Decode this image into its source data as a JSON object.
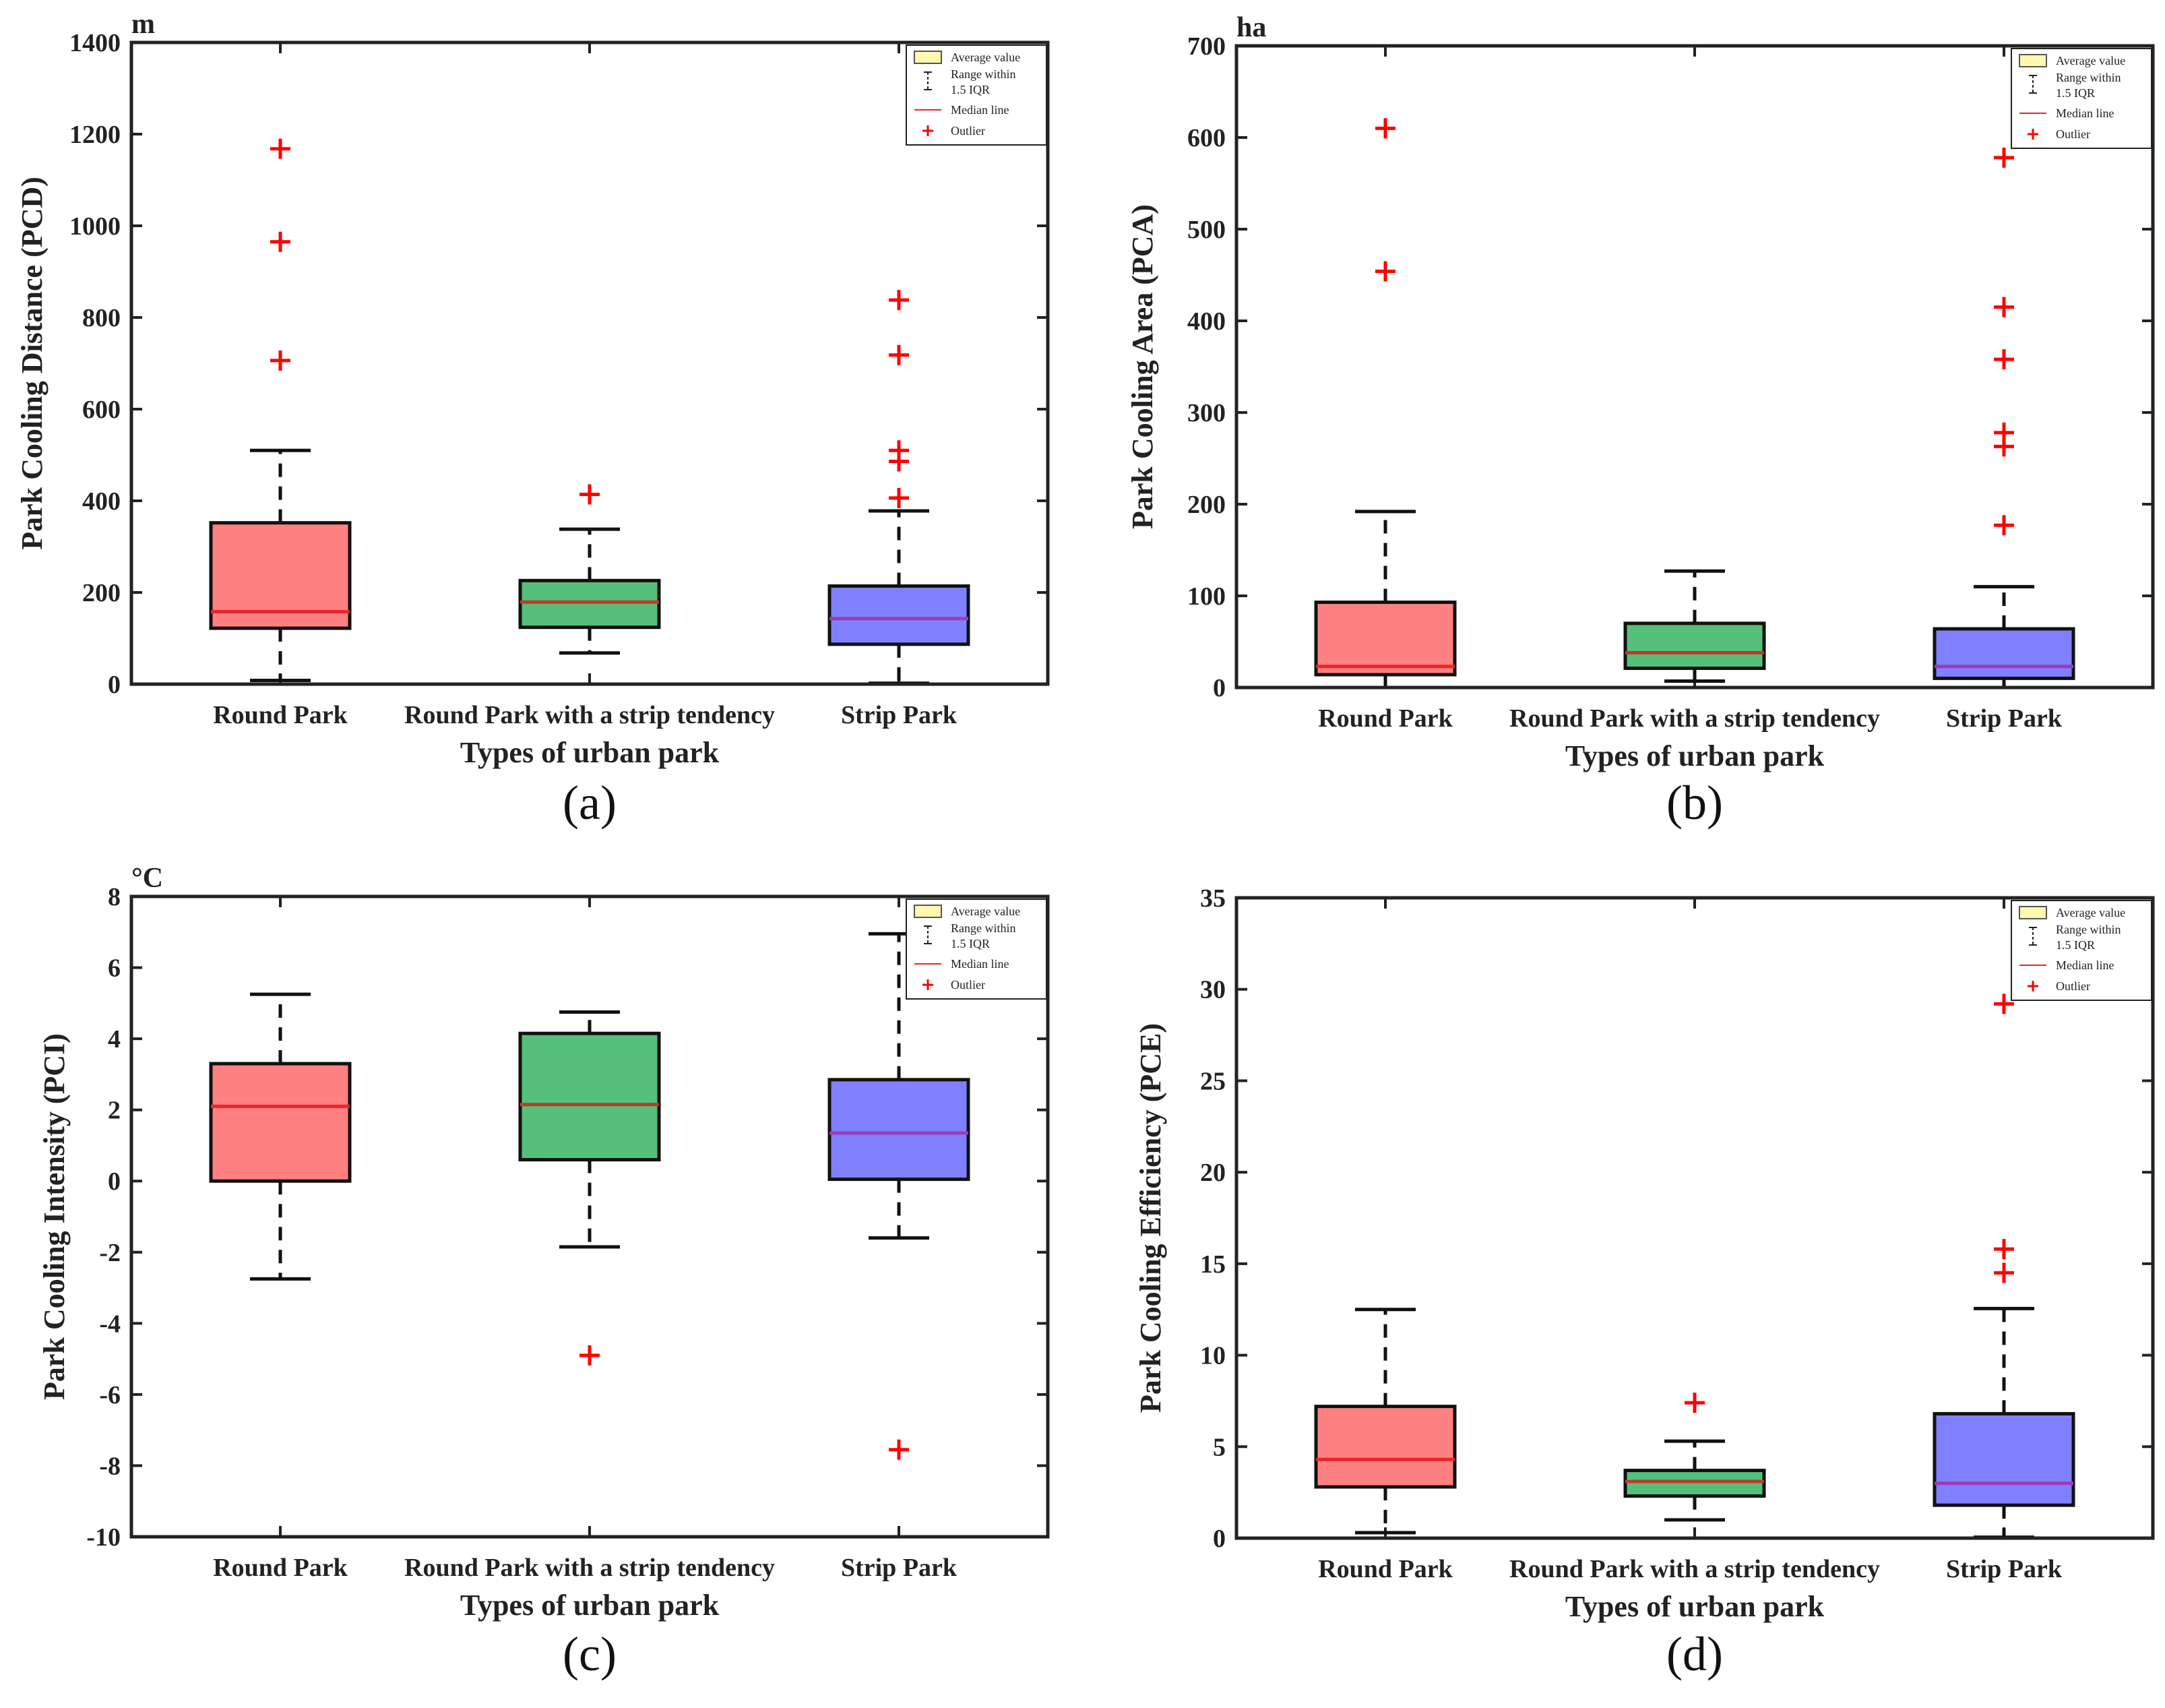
{
  "chart_data": [
    {
      "type": "box",
      "tag": "(a)",
      "unit": "m",
      "ylabel": "Park Cooling Distance (PCD)",
      "xlabel": "Types of urban park",
      "ylim": [
        0,
        1400
      ],
      "yticks": [
        0,
        200,
        400,
        600,
        800,
        1000,
        1200,
        1400
      ],
      "categories": [
        "Round Park",
        "Round Park with a strip tendency",
        "Strip Park"
      ],
      "colors": [
        "#ff8080",
        "#55c07a",
        "#8080ff"
      ],
      "median_colors": [
        "#e8262a",
        "#c0392b",
        "#9b3cb5"
      ],
      "boxes": [
        {
          "whisker_low": 8,
          "q1": 122,
          "median": 158,
          "q3": 352,
          "whisker_high": 510,
          "outliers": [
            706,
            965,
            1168
          ]
        },
        {
          "whisker_low": 68,
          "q1": 124,
          "median": 179,
          "q3": 226,
          "whisker_high": 338,
          "outliers": [
            414
          ]
        },
        {
          "whisker_low": 2,
          "q1": 87,
          "median": 143,
          "q3": 214,
          "whisker_high": 378,
          "outliers": [
            406,
            486,
            510,
            718,
            838
          ]
        }
      ],
      "legend": {
        "average": "Average value",
        "range_line1": "Range within",
        "range_line2": "1.5 IQR",
        "median": "Median line",
        "outlier": "Outlier"
      }
    },
    {
      "type": "box",
      "tag": "(b)",
      "unit": "ha",
      "ylabel": "Park Cooling Area (PCA)",
      "xlabel": "Types of urban park",
      "ylim": [
        0,
        700
      ],
      "yticks": [
        0,
        100,
        200,
        300,
        400,
        500,
        600,
        700
      ],
      "categories": [
        "Round Park",
        "Round Park with a strip tendency",
        "Strip Park"
      ],
      "colors": [
        "#ff8080",
        "#55c07a",
        "#8080ff"
      ],
      "median_colors": [
        "#e8262a",
        "#c0392b",
        "#9b3cb5"
      ],
      "boxes": [
        {
          "whisker_low": 0,
          "q1": 14,
          "median": 23,
          "q3": 93,
          "whisker_high": 192,
          "outliers": [
            454,
            610
          ]
        },
        {
          "whisker_low": 7,
          "q1": 21,
          "median": 38,
          "q3": 70,
          "whisker_high": 127,
          "outliers": []
        },
        {
          "whisker_low": 0,
          "q1": 10,
          "median": 23,
          "q3": 64,
          "whisker_high": 110,
          "outliers": [
            177,
            263,
            278,
            358,
            415,
            578
          ]
        }
      ],
      "legend": {
        "average": "Average value",
        "range_line1": "Range within",
        "range_line2": "1.5 IQR",
        "median": "Median line",
        "outlier": "Outlier"
      }
    },
    {
      "type": "box",
      "tag": "(c)",
      "unit": "°C",
      "ylabel": "Park Cooling Intensity (PCI)",
      "xlabel": "Types of urban park",
      "ylim": [
        -10,
        8
      ],
      "yticks": [
        -10,
        -8,
        -6,
        -4,
        -2,
        0,
        2,
        4,
        6,
        8
      ],
      "categories": [
        "Round Park",
        "Round Park with a strip tendency",
        "Strip Park"
      ],
      "colors": [
        "#ff8080",
        "#55c07a",
        "#8080ff"
      ],
      "median_colors": [
        "#e8262a",
        "#c0392b",
        "#9b3cb5"
      ],
      "boxes": [
        {
          "whisker_low": -2.75,
          "q1": 0.0,
          "median": 2.1,
          "q3": 3.3,
          "whisker_high": 5.25,
          "outliers": []
        },
        {
          "whisker_low": -1.85,
          "q1": 0.6,
          "median": 2.15,
          "q3": 4.15,
          "whisker_high": 4.75,
          "outliers": [
            -4.9
          ]
        },
        {
          "whisker_low": -1.6,
          "q1": 0.05,
          "median": 1.35,
          "q3": 2.85,
          "whisker_high": 6.95,
          "outliers": [
            -7.55
          ]
        }
      ],
      "legend": {
        "average": "Average value",
        "range_line1": "Range within",
        "range_line2": "1.5 IQR",
        "median": "Median line",
        "outlier": "Outlier"
      }
    },
    {
      "type": "box",
      "tag": "(d)",
      "unit": "",
      "ylabel": "Park Cooling Efficiency (PCE)",
      "xlabel": "Types of urban park",
      "ylim": [
        0,
        35
      ],
      "yticks": [
        0,
        5,
        10,
        15,
        20,
        25,
        30,
        35
      ],
      "categories": [
        "Round Park",
        "Round Park with a strip tendency",
        "Strip Park"
      ],
      "colors": [
        "#ff8080",
        "#55c07a",
        "#8080ff"
      ],
      "median_colors": [
        "#e8262a",
        "#c0392b",
        "#9b3cb5"
      ],
      "boxes": [
        {
          "whisker_low": 0.3,
          "q1": 2.8,
          "median": 4.3,
          "q3": 7.2,
          "whisker_high": 12.5,
          "outliers": []
        },
        {
          "whisker_low": 1.0,
          "q1": 2.3,
          "median": 3.1,
          "q3": 3.7,
          "whisker_high": 5.3,
          "outliers": [
            7.4
          ]
        },
        {
          "whisker_low": 0.05,
          "q1": 1.8,
          "median": 3.0,
          "q3": 6.8,
          "whisker_high": 12.55,
          "outliers": [
            14.5,
            15.8,
            29.2
          ]
        }
      ],
      "legend": {
        "average": "Average value",
        "range_line1": "Range within",
        "range_line2": "1.5 IQR",
        "median": "Median line",
        "outlier": "Outlier"
      }
    }
  ]
}
